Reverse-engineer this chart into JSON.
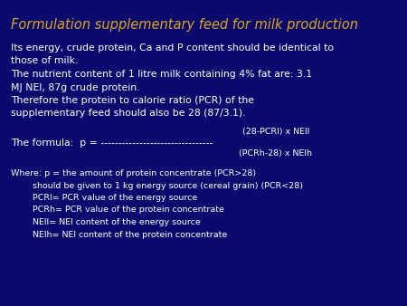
{
  "title": "Formulation supplementary feed for milk production",
  "title_color": "#DAA520",
  "title_fontsize": 10.5,
  "background_color": "#0A0A6E",
  "text_color": "#FFFFFF",
  "body_fontsize": 7.8,
  "small_fontsize": 6.8,
  "paragraph1": "Its energy, crude protein, Ca and P content should be identical to\nthose of milk.\nThe nutrient content of 1 litre milk containing 4% fat are: 3.1\nMJ NEl, 87g crude protein.\nTherefore the protein to calorie ratio (PCR) of the\nsupplementary feed should also be 28 (87/3.1).",
  "formula_label": "The formula:  p = ",
  "formula_line": "--------------------------------",
  "formula_numerator": "(28-PCRl) x NElI",
  "formula_denominator": "(PCRh-28) x NElh",
  "where_line1": "Where: p = the amount of protein concentrate (PCR>28)",
  "where_line2": "        should be given to 1 kg energy source (cereal grain) (PCR<28)",
  "where_line3": "        PCRl= PCR value of the energy source",
  "where_line4": "        PCRh= PCR value of the protein concentrate",
  "where_line5": "        NElI= NEl content of the energy source",
  "where_line6": "        NElh= NEl content of the protein concentrate"
}
